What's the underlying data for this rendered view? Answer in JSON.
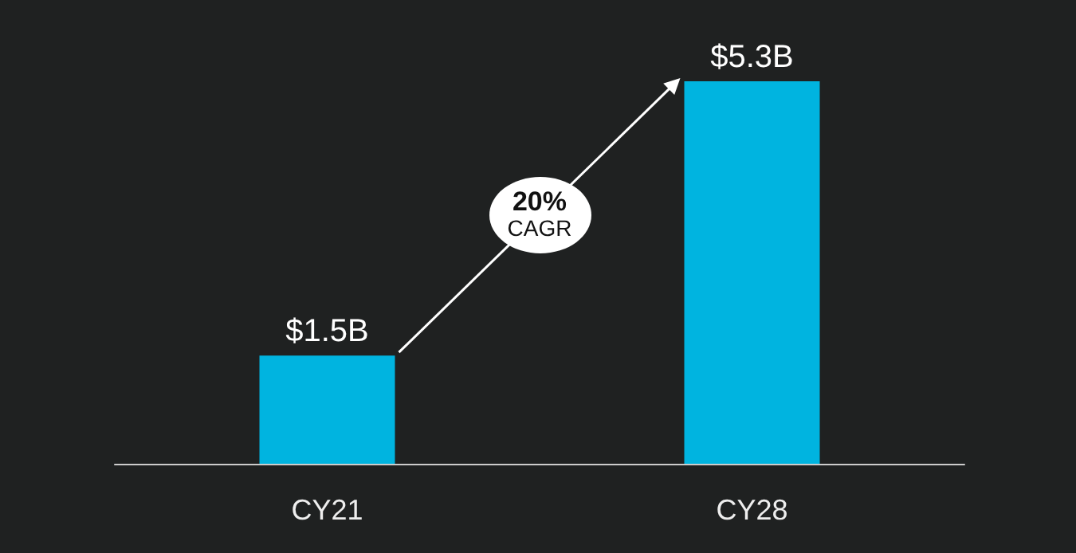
{
  "chart_data": {
    "type": "bar",
    "categories": [
      "CY21",
      "CY28"
    ],
    "values": [
      1.5,
      5.3
    ],
    "value_labels": [
      "$1.5B",
      "$5.3B"
    ],
    "color": "#00b4e0",
    "annotations": [
      "20% CAGR"
    ]
  }
}
